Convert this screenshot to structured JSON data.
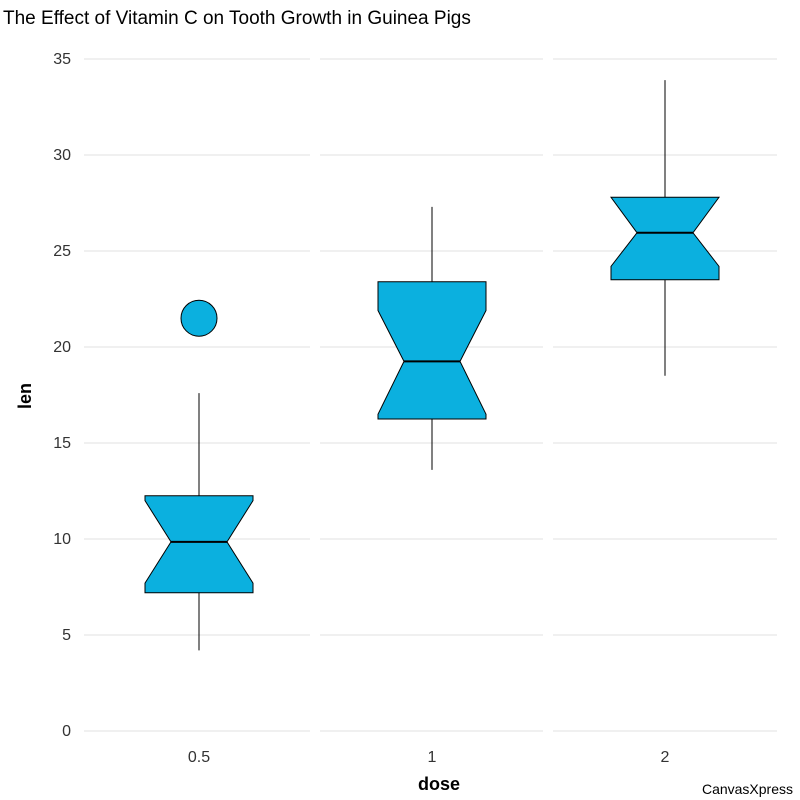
{
  "chart_data": {
    "type": "boxplot",
    "title": "The Effect of Vitamin C on Tooth Growth in Guinea Pigs",
    "xlabel": "dose",
    "ylabel": "len",
    "ylim": [
      0,
      35
    ],
    "yticks": [
      0,
      5,
      10,
      15,
      20,
      25,
      30,
      35
    ],
    "categories": [
      "0.5",
      "1",
      "2"
    ],
    "boxes": [
      {
        "category": "0.5",
        "whisker_low": 4.2,
        "q1": 7.2,
        "median": 9.85,
        "q3": 12.25,
        "whisker_high": 17.6,
        "notch_low": 7.7,
        "notch_high": 12.0,
        "outliers": [
          21.5
        ]
      },
      {
        "category": "1",
        "whisker_low": 13.6,
        "q1": 16.25,
        "median": 19.25,
        "q3": 23.4,
        "whisker_high": 27.3,
        "notch_low": 16.5,
        "notch_high": 21.9,
        "outliers": []
      },
      {
        "category": "2",
        "whisker_low": 18.5,
        "q1": 23.5,
        "median": 25.95,
        "q3": 27.8,
        "whisker_high": 33.9,
        "notch_low": 24.2,
        "notch_high": 27.8,
        "outliers": []
      }
    ],
    "grid": true,
    "colors": {
      "box_fill": "#0bb0df",
      "box_stroke": "#000000",
      "grid": "#e0e0e0",
      "whisker": "#000000"
    }
  },
  "credit": "CanvasXpress"
}
